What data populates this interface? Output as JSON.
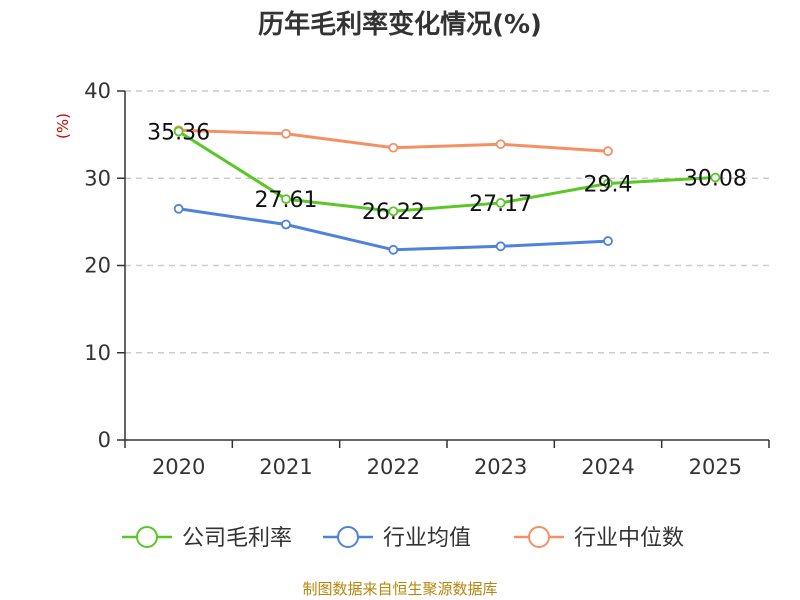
{
  "chart_data": {
    "type": "line",
    "title": "历年毛利率变化情况(%)",
    "ylabel": "(%)",
    "xlabel": "",
    "categories": [
      "2020",
      "2021",
      "2022",
      "2023",
      "2024",
      "2025"
    ],
    "ylim": [
      0,
      40
    ],
    "yticks": [
      0,
      10,
      20,
      30,
      40
    ],
    "grid": "horizontal-dashed",
    "legend_position": "bottom",
    "series": [
      {
        "name": "公司毛利率",
        "color": "#5ac727",
        "values": [
          35.36,
          27.61,
          26.22,
          27.17,
          29.4,
          30.08
        ],
        "labels": [
          "35.36",
          "27.61",
          "26.22",
          "27.17",
          "29.4",
          "30.08"
        ]
      },
      {
        "name": "行业均值",
        "color": "#4f81dd",
        "values": [
          26.5,
          24.7,
          21.8,
          22.2,
          22.8,
          null
        ]
      },
      {
        "name": "行业中位数",
        "color": "#f59064",
        "values": [
          35.5,
          35.1,
          33.5,
          33.9,
          33.1,
          null
        ]
      }
    ]
  },
  "source_note": "制图数据来自恒生聚源数据库"
}
